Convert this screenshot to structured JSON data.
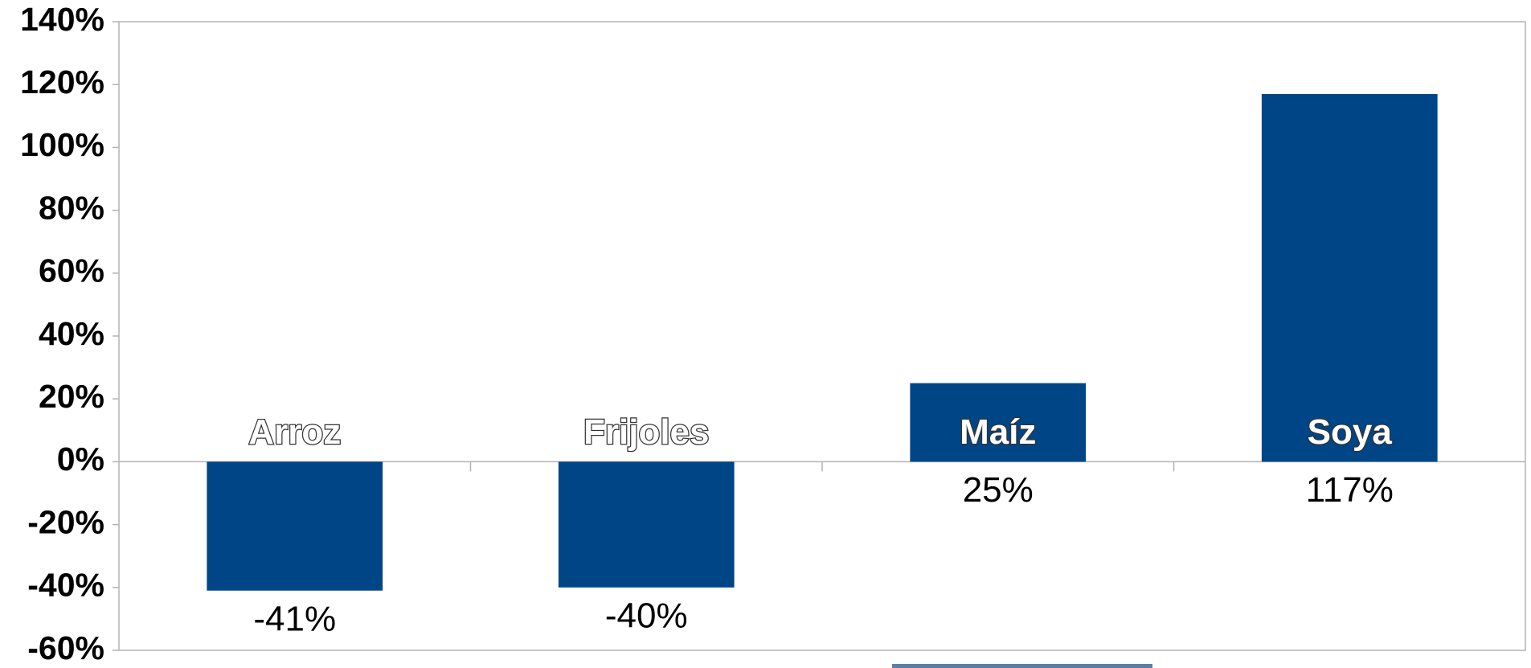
{
  "chart_data": {
    "type": "bar",
    "categories": [
      "Arroz",
      "Frijoles",
      "Maíz",
      "Soya"
    ],
    "values": [
      -41,
      -40,
      25,
      117
    ],
    "value_labels": [
      "-41%",
      "-40%",
      "25%",
      "117%"
    ],
    "color": "#004586",
    "ylim": [
      -60,
      140
    ],
    "yticks": [
      {
        "value": -60,
        "label": "-60%"
      },
      {
        "value": -40,
        "label": "-40%"
      },
      {
        "value": -20,
        "label": "-20%"
      },
      {
        "value": 0,
        "label": "0%"
      },
      {
        "value": 20,
        "label": "20%"
      },
      {
        "value": 40,
        "label": "40%"
      },
      {
        "value": 60,
        "label": "60%"
      },
      {
        "value": 80,
        "label": "80%"
      },
      {
        "value": 100,
        "label": "100%"
      },
      {
        "value": 120,
        "label": "120%"
      },
      {
        "value": 140,
        "label": "140%"
      }
    ],
    "grid": false
  }
}
